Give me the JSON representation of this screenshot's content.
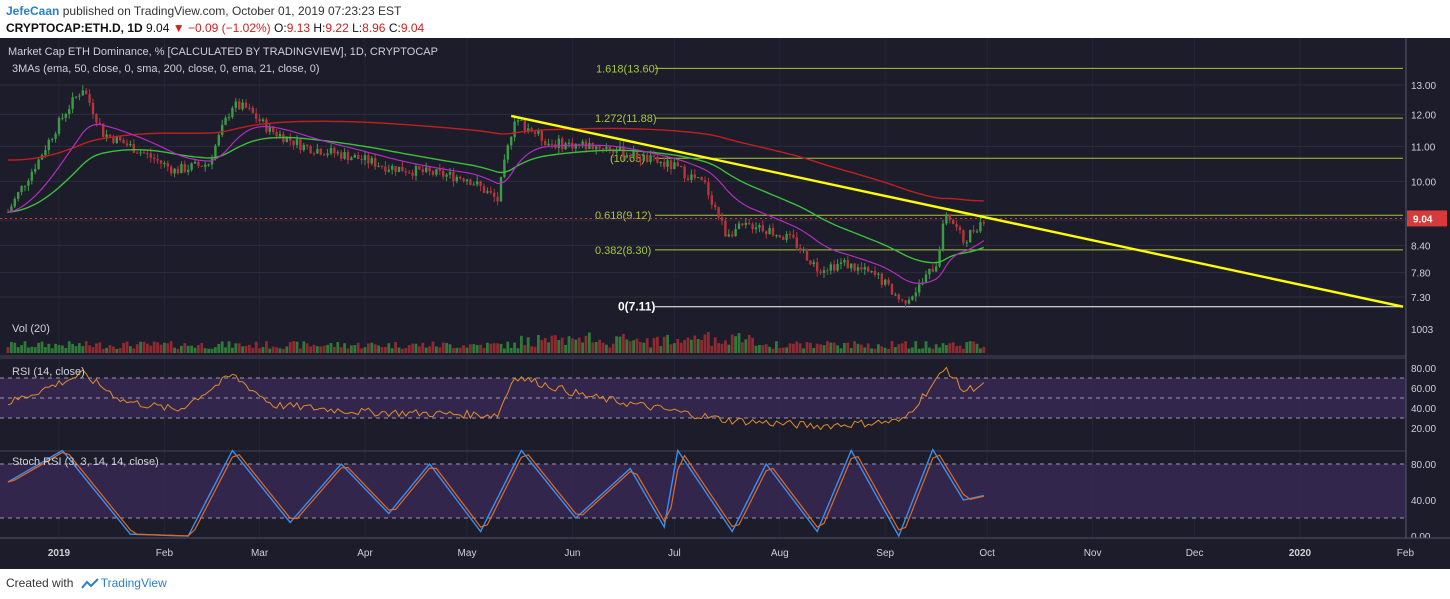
{
  "header": {
    "author": "JefeCaan",
    "published_text": "published on TradingView.com, October 01, 2019 07:23:23 EST",
    "symbol": "CRYPTOCAP:ETH.D, 1D",
    "last": "9.04",
    "change": "▼ −0.09 (−1.02%)",
    "o_label": "O:",
    "o_val": "9.13",
    "h_label": "H:",
    "h_val": "9.22",
    "l_label": "L:",
    "l_val": "8.96",
    "c_label": "C:",
    "c_val": "9.04"
  },
  "footer": {
    "created_with": "Created with",
    "brand": "TradingView"
  },
  "colors": {
    "background": "#1c1c2a",
    "up": "#3d9a46",
    "down": "#b5353a",
    "trendline": "#ffff00",
    "ema21": "#b02ec0",
    "sma200": "#c02020",
    "ema50": "#3cbe3c",
    "fib": "#a6c83c",
    "rsi": "#e08c28",
    "stoch_k": "#3a8ef0",
    "stoch_d": "#e06a1e",
    "band": "#3b2a5a",
    "price_tag": "#d83a3a"
  },
  "chart_data": {
    "type": "candlestick",
    "title": "Market Cap ETH Dominance, % [CALCULATED BY TRADINGVIEW], 1D, CRYPTOCAP",
    "indicator_label": "3MAs (ema, 50, close, 0, sma, 200, close, 0, ema, 21, close, 0)",
    "x_tick_labels": [
      "2019",
      "Feb",
      "Mar",
      "Apr",
      "May",
      "Jun",
      "Jul",
      "Aug",
      "Sep",
      "Oct",
      "Nov",
      "Dec",
      "2020",
      "Feb"
    ],
    "price_axis": {
      "ticks": [
        "13.00",
        "12.00",
        "11.00",
        "10.00",
        "9.00",
        "8.40",
        "7.80",
        "7.30"
      ],
      "scale": "log",
      "last_price_tag": "9.04"
    },
    "fib_levels": [
      {
        "label": "1.618(13.60)",
        "value": 13.6
      },
      {
        "label": "1.272(11.88)",
        "value": 11.88
      },
      {
        "label": "(10.65)",
        "value": 10.65
      },
      {
        "label": "0.618(9.12)",
        "value": 9.12
      },
      {
        "label": "0.382(8.30)",
        "value": 8.3
      },
      {
        "label": "0(7.11)",
        "value": 7.11
      }
    ],
    "trendline": {
      "from": {
        "date": "2019-05-14",
        "value": 11.95
      },
      "to": {
        "date": "2020-02-10",
        "value": 7.11
      }
    },
    "price_anchors": [
      {
        "date": "2018-12-17",
        "value": 9.2
      },
      {
        "date": "2018-12-26",
        "value": 10.6
      },
      {
        "date": "2019-01-03",
        "value": 12.1
      },
      {
        "date": "2019-01-08",
        "value": 12.9
      },
      {
        "date": "2019-01-14",
        "value": 11.4
      },
      {
        "date": "2019-01-24",
        "value": 10.9
      },
      {
        "date": "2019-02-04",
        "value": 10.3
      },
      {
        "date": "2019-02-14",
        "value": 10.5
      },
      {
        "date": "2019-02-21",
        "value": 12.3
      },
      {
        "date": "2019-02-25",
        "value": 12.2
      },
      {
        "date": "2019-03-04",
        "value": 11.5
      },
      {
        "date": "2019-03-14",
        "value": 11.0
      },
      {
        "date": "2019-03-28",
        "value": 10.7
      },
      {
        "date": "2019-04-08",
        "value": 10.4
      },
      {
        "date": "2019-04-22",
        "value": 10.2
      },
      {
        "date": "2019-05-01",
        "value": 10.1
      },
      {
        "date": "2019-05-10",
        "value": 9.5
      },
      {
        "date": "2019-05-15",
        "value": 11.9
      },
      {
        "date": "2019-05-25",
        "value": 11.1
      },
      {
        "date": "2019-06-10",
        "value": 11.0
      },
      {
        "date": "2019-06-20",
        "value": 10.7
      },
      {
        "date": "2019-07-01",
        "value": 10.4
      },
      {
        "date": "2019-07-10",
        "value": 9.9
      },
      {
        "date": "2019-07-16",
        "value": 8.7
      },
      {
        "date": "2019-07-25",
        "value": 8.9
      },
      {
        "date": "2019-08-05",
        "value": 8.5
      },
      {
        "date": "2019-08-12",
        "value": 7.9
      },
      {
        "date": "2019-08-20",
        "value": 8.0
      },
      {
        "date": "2019-08-30",
        "value": 7.7
      },
      {
        "date": "2019-09-06",
        "value": 7.2
      },
      {
        "date": "2019-09-11",
        "value": 7.5
      },
      {
        "date": "2019-09-16",
        "value": 8.0
      },
      {
        "date": "2019-09-19",
        "value": 9.2
      },
      {
        "date": "2019-09-24",
        "value": 8.5
      },
      {
        "date": "2019-09-30",
        "value": 9.04
      }
    ],
    "volume": {
      "label": "Vol (20)",
      "axis_tick": "1003"
    },
    "rsi": {
      "label": "RSI (14, close)",
      "ticks": [
        "80.00",
        "60.00",
        "40.00",
        "20.00"
      ],
      "band": [
        30,
        70
      ],
      "anchors": [
        {
          "date": "2018-12-17",
          "value": 45
        },
        {
          "date": "2019-01-08",
          "value": 74
        },
        {
          "date": "2019-01-20",
          "value": 47
        },
        {
          "date": "2019-02-05",
          "value": 38
        },
        {
          "date": "2019-02-21",
          "value": 73
        },
        {
          "date": "2019-03-05",
          "value": 43
        },
        {
          "date": "2019-04-01",
          "value": 36
        },
        {
          "date": "2019-05-10",
          "value": 33
        },
        {
          "date": "2019-05-15",
          "value": 72
        },
        {
          "date": "2019-06-05",
          "value": 52
        },
        {
          "date": "2019-07-16",
          "value": 28
        },
        {
          "date": "2019-08-12",
          "value": 22
        },
        {
          "date": "2019-09-06",
          "value": 27
        },
        {
          "date": "2019-09-19",
          "value": 80
        },
        {
          "date": "2019-09-24",
          "value": 57
        },
        {
          "date": "2019-09-30",
          "value": 64
        }
      ]
    },
    "stoch_rsi": {
      "label": "Stoch RSI (3, 3, 14, 14, close)",
      "ticks": [
        "80.00",
        "40.00",
        "0.00"
      ],
      "band": [
        20,
        80
      ],
      "anchors": [
        {
          "date": "2018-12-17",
          "value": 60
        },
        {
          "date": "2019-01-02",
          "value": 95
        },
        {
          "date": "2019-01-22",
          "value": 2
        },
        {
          "date": "2019-02-08",
          "value": 0
        },
        {
          "date": "2019-02-21",
          "value": 95
        },
        {
          "date": "2019-03-10",
          "value": 15
        },
        {
          "date": "2019-03-25",
          "value": 80
        },
        {
          "date": "2019-04-08",
          "value": 25
        },
        {
          "date": "2019-04-20",
          "value": 80
        },
        {
          "date": "2019-05-05",
          "value": 5
        },
        {
          "date": "2019-05-17",
          "value": 95
        },
        {
          "date": "2019-06-02",
          "value": 20
        },
        {
          "date": "2019-06-18",
          "value": 75
        },
        {
          "date": "2019-06-28",
          "value": 10
        },
        {
          "date": "2019-07-02",
          "value": 95
        },
        {
          "date": "2019-07-18",
          "value": 5
        },
        {
          "date": "2019-07-28",
          "value": 80
        },
        {
          "date": "2019-08-12",
          "value": 5
        },
        {
          "date": "2019-08-22",
          "value": 95
        },
        {
          "date": "2019-09-05",
          "value": 0
        },
        {
          "date": "2019-09-15",
          "value": 96
        },
        {
          "date": "2019-09-24",
          "value": 40
        },
        {
          "date": "2019-09-30",
          "value": 45
        }
      ]
    }
  }
}
